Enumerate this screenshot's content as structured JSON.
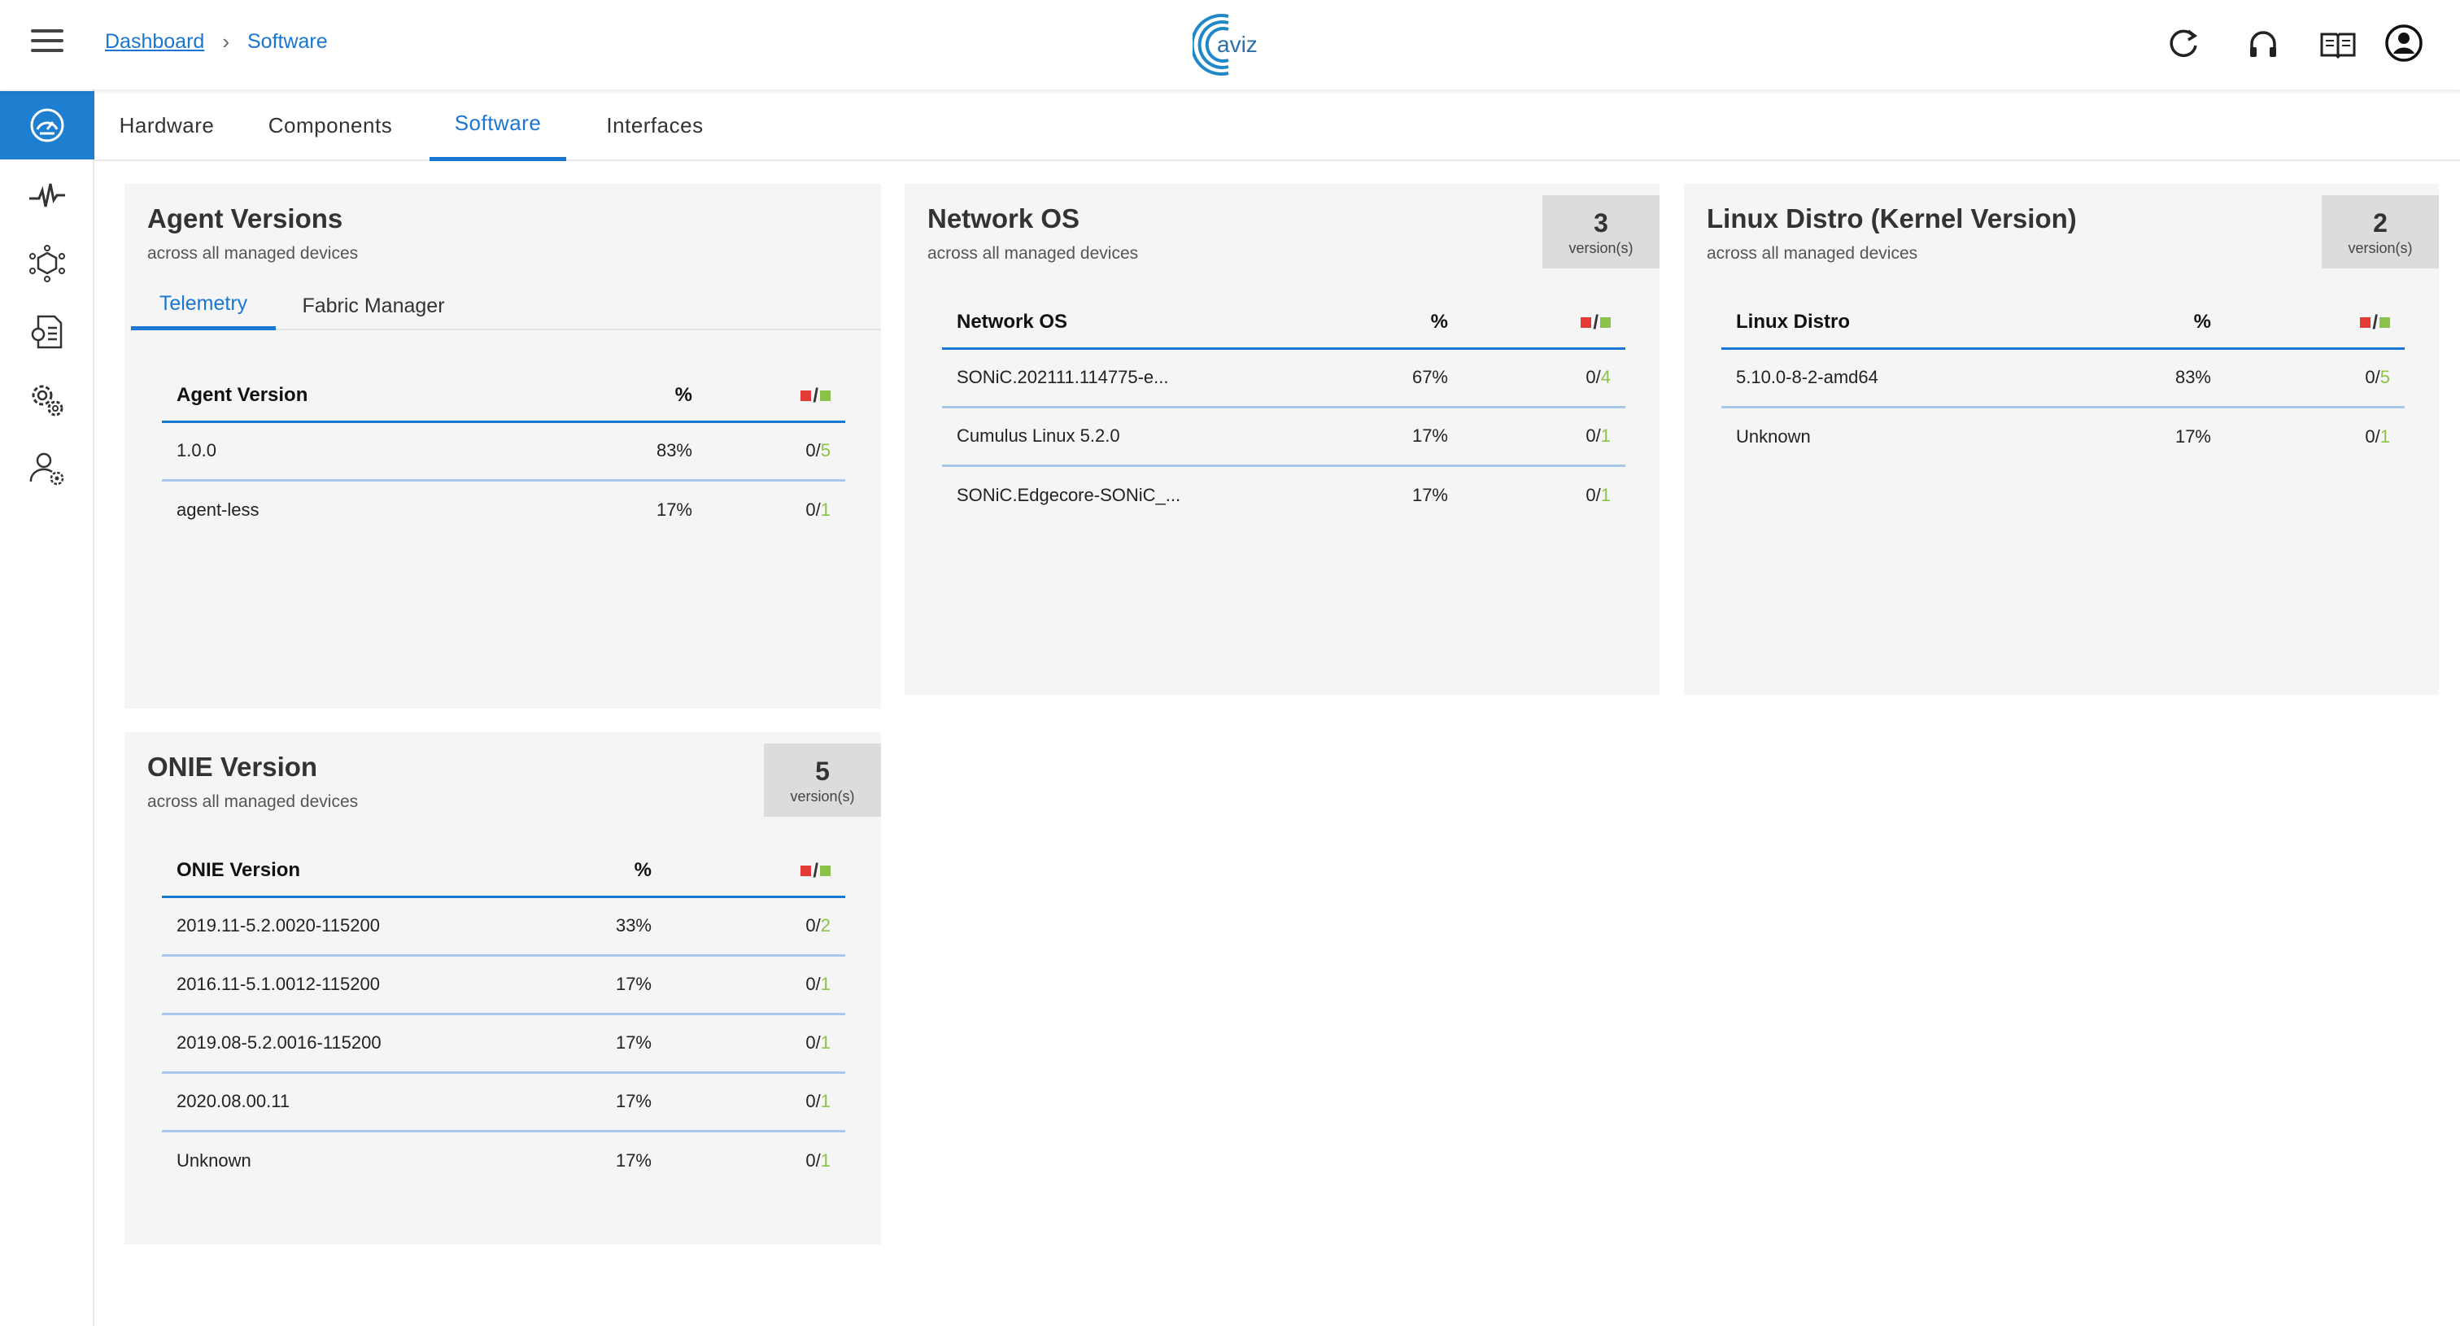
{
  "header": {
    "breadcrumb": {
      "home": "Dashboard",
      "separator": "›",
      "current": "Software"
    },
    "logo_text": "aviz",
    "icons": [
      "refresh-icon",
      "headset-icon",
      "docs-book-icon",
      "account-icon"
    ]
  },
  "sidebar": {
    "items": [
      {
        "name": "dashboard",
        "icon": "speedometer-icon",
        "active": true
      },
      {
        "name": "telemetry",
        "icon": "pulse-icon",
        "active": false
      },
      {
        "name": "topology",
        "icon": "network-cube-icon",
        "active": false
      },
      {
        "name": "config",
        "icon": "config-doc-icon",
        "active": false
      },
      {
        "name": "settings",
        "icon": "gears-icon",
        "active": false
      },
      {
        "name": "users",
        "icon": "user-gear-icon",
        "active": false
      }
    ]
  },
  "tabs": [
    {
      "label": "Hardware",
      "active": false
    },
    {
      "label": "Components",
      "active": false
    },
    {
      "label": "Software",
      "active": true
    },
    {
      "label": "Interfaces",
      "active": false
    }
  ],
  "cards": {
    "agent": {
      "title": "Agent Versions",
      "subtitle": "across all managed devices",
      "subtabs": [
        "Telemetry",
        "Fabric Manager"
      ],
      "columns": [
        "Agent Version",
        "%"
      ],
      "rows": [
        {
          "name": "1.0.0",
          "pct": "83%",
          "red": "0",
          "green": "5"
        },
        {
          "name": "agent-less",
          "pct": "17%",
          "red": "0",
          "green": "1"
        }
      ]
    },
    "nos": {
      "title": "Network OS",
      "subtitle": "across all managed devices",
      "count": "3",
      "count_label": "version(s)",
      "columns": [
        "Network OS",
        "%"
      ],
      "rows": [
        {
          "name": "SONiC.202111.114775-e...",
          "pct": "67%",
          "red": "0",
          "green": "4"
        },
        {
          "name": "Cumulus Linux 5.2.0",
          "pct": "17%",
          "red": "0",
          "green": "1"
        },
        {
          "name": "SONiC.Edgecore-SONiC_...",
          "pct": "17%",
          "red": "0",
          "green": "1"
        }
      ]
    },
    "linux": {
      "title": "Linux Distro (Kernel Version)",
      "subtitle": "across all managed devices",
      "count": "2",
      "count_label": "version(s)",
      "columns": [
        "Linux Distro",
        "%"
      ],
      "rows": [
        {
          "name": "5.10.0-8-2-amd64",
          "pct": "83%",
          "red": "0",
          "green": "5"
        },
        {
          "name": "Unknown",
          "pct": "17%",
          "red": "0",
          "green": "1"
        }
      ]
    },
    "onie": {
      "title": "ONIE Version",
      "subtitle": "across all managed devices",
      "count": "5",
      "count_label": "version(s)",
      "columns": [
        "ONIE Version",
        "%"
      ],
      "rows": [
        {
          "name": "2019.11-5.2.0020-115200",
          "pct": "33%",
          "red": "0",
          "green": "2"
        },
        {
          "name": "2016.11-5.1.0012-115200",
          "pct": "17%",
          "red": "0",
          "green": "1"
        },
        {
          "name": "2019.08-5.2.0016-115200",
          "pct": "17%",
          "red": "0",
          "green": "1"
        },
        {
          "name": "2020.08.00.11",
          "pct": "17%",
          "red": "0",
          "green": "1"
        },
        {
          "name": "Unknown",
          "pct": "17%",
          "red": "0",
          "green": "1"
        }
      ]
    }
  },
  "colors": {
    "accent": "#1976d2",
    "sidebar_active": "#1e7fd0",
    "down_red": "#e53935",
    "up_green": "#8bc34a",
    "card_bg": "#f5f5f5"
  }
}
